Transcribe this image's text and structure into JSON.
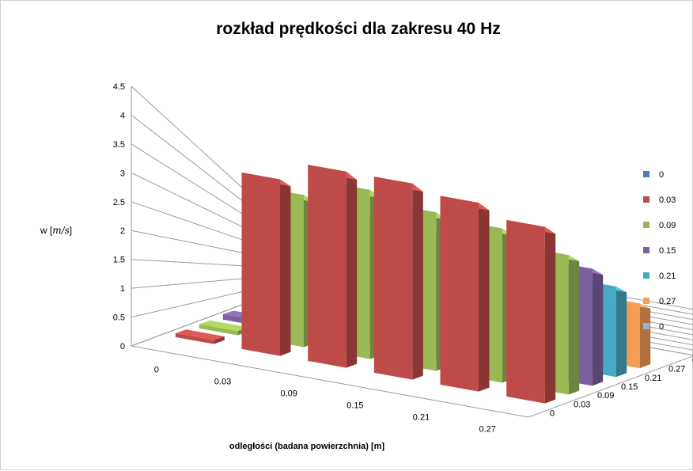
{
  "chart_data": {
    "type": "bar",
    "title": "rozkład prędkości  dla zakresu  40 Hz",
    "xlabel": "odległości (badana powierzchnia) [m]",
    "zlabel": "w [m/s]",
    "zlabel_parts": {
      "letter": "w [",
      "unit": "m/s",
      "close": "]"
    },
    "zlim": [
      0,
      4.5
    ],
    "zticks": [
      "0",
      "0.5",
      "1",
      "1.5",
      "2",
      "2.5",
      "3",
      "3.5",
      "4",
      "4.5"
    ],
    "categories": [
      "0",
      "0.03",
      "0.09",
      "0.15",
      "0.21",
      "0.27"
    ],
    "depth_categories": [
      "0",
      "0.03",
      "0.09",
      "0.15",
      "0.21",
      "0.27",
      "0"
    ],
    "grid": true,
    "legend_position": "right",
    "series": [
      {
        "name": "0",
        "color": "#4a7ebb",
        "values": [
          0,
          0,
          0,
          0,
          0,
          0
        ]
      },
      {
        "name": "0.03",
        "color": "#be4b48",
        "values": [
          0.08,
          3.6,
          4.0,
          4.0,
          3.85,
          3.6
        ]
      },
      {
        "name": "0.09",
        "color": "#98b954",
        "values": [
          0.1,
          3.6,
          4.0,
          3.75,
          3.65,
          3.3
        ]
      },
      {
        "name": "0.15",
        "color": "#7d60a0",
        "values": [
          0.15,
          3.65,
          3.65,
          3.5,
          3.45,
          3.3
        ]
      },
      {
        "name": "0.21",
        "color": "#46aac5",
        "values": [
          0.2,
          3.25,
          3.5,
          3.4,
          3.35,
          3.15
        ]
      },
      {
        "name": "0.27",
        "color": "#f59d56",
        "values": [
          0,
          3.55,
          3.75,
          3.55,
          3.5,
          2.95
        ]
      },
      {
        "name": "0",
        "color": "#95b3d7",
        "values": [
          0,
          0,
          0,
          0,
          0,
          0
        ]
      }
    ]
  }
}
